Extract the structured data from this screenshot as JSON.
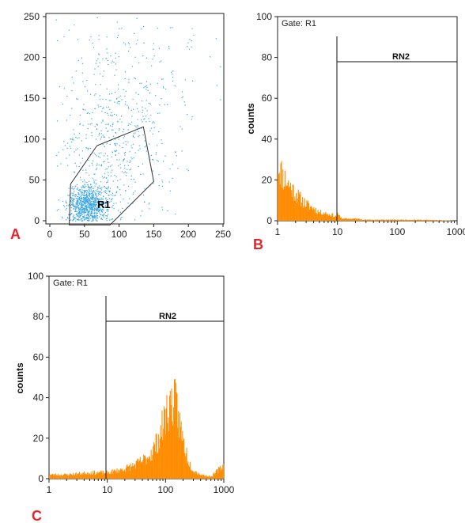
{
  "colors": {
    "scatter_points": "#3aa6e6",
    "histogram_bars": "#ff8c00",
    "panel_letters": "#e8232a",
    "axes": "#222222",
    "gate_lines": "#333333"
  },
  "panel_labels": {
    "a": "A",
    "b": "B",
    "c": "C"
  },
  "chart_data": [
    {
      "type": "scatter",
      "panel": "A",
      "xlim": [
        0,
        250
      ],
      "ylim": [
        0,
        250
      ],
      "x_ticks": [
        "0",
        "50",
        "100",
        "150",
        "200",
        "250"
      ],
      "y_ticks": [
        "0",
        "50",
        "100",
        "150",
        "200",
        "250"
      ],
      "gate": {
        "name": "R1",
        "polygon": [
          [
            28,
            -5
          ],
          [
            30,
            45
          ],
          [
            68,
            92
          ],
          [
            135,
            115
          ],
          [
            150,
            48
          ],
          [
            87,
            -5
          ]
        ]
      },
      "point_clusters": [
        {
          "description": "dense cluster",
          "center": [
            55,
            20
          ],
          "spread": [
            15,
            12
          ],
          "count": 900
        },
        {
          "description": "spread population",
          "center": [
            90,
            90
          ],
          "spread": [
            40,
            50
          ],
          "count": 500
        },
        {
          "description": "sparse upper",
          "center": [
            120,
            190
          ],
          "spread": [
            60,
            40
          ],
          "count": 160
        }
      ]
    },
    {
      "type": "bar",
      "panel": "B",
      "x_scale": "log",
      "xlim": [
        1,
        1000
      ],
      "ylim": [
        0,
        100
      ],
      "x_ticks": [
        "1",
        "10",
        "100",
        "1000"
      ],
      "y_ticks": [
        "0",
        "20",
        "40",
        "60",
        "80",
        "100"
      ],
      "ylabel": "counts",
      "gate_text": "Gate: R1",
      "marker": {
        "name": "RN2",
        "x_start": 9.5,
        "x_end": 1000,
        "y": 77
      },
      "x": [
        1,
        1.2,
        1.5,
        2,
        2.5,
        3,
        4,
        5,
        6,
        7,
        8,
        9,
        10,
        12,
        15,
        20,
        30,
        50,
        100,
        200,
        500,
        1000
      ],
      "values": [
        28,
        22,
        18,
        13,
        10,
        8,
        6,
        4,
        4,
        3,
        3,
        2,
        3,
        1,
        1,
        1,
        0.5,
        0.5,
        0.5,
        0.5,
        0.3,
        0
      ]
    },
    {
      "type": "bar",
      "panel": "C",
      "x_scale": "log",
      "xlim": [
        1,
        1000
      ],
      "ylim": [
        0,
        100
      ],
      "x_ticks": [
        "1",
        "10",
        "100",
        "1000"
      ],
      "y_ticks": [
        "0",
        "20",
        "40",
        "60",
        "80",
        "100"
      ],
      "ylabel": "counts",
      "gate_text": "Gate: R1",
      "marker": {
        "name": "RN2",
        "x_start": 9.5,
        "x_end": 1000,
        "y": 77
      },
      "x": [
        1,
        2,
        5,
        10,
        15,
        20,
        30,
        40,
        50,
        60,
        70,
        80,
        90,
        100,
        110,
        130,
        150,
        170,
        200,
        250,
        300,
        400,
        600,
        1000
      ],
      "values": [
        2,
        2,
        3,
        3,
        4,
        5,
        7,
        9,
        11,
        14,
        18,
        22,
        27,
        32,
        35,
        38,
        36,
        28,
        18,
        8,
        4,
        2,
        1,
        7
      ]
    }
  ]
}
